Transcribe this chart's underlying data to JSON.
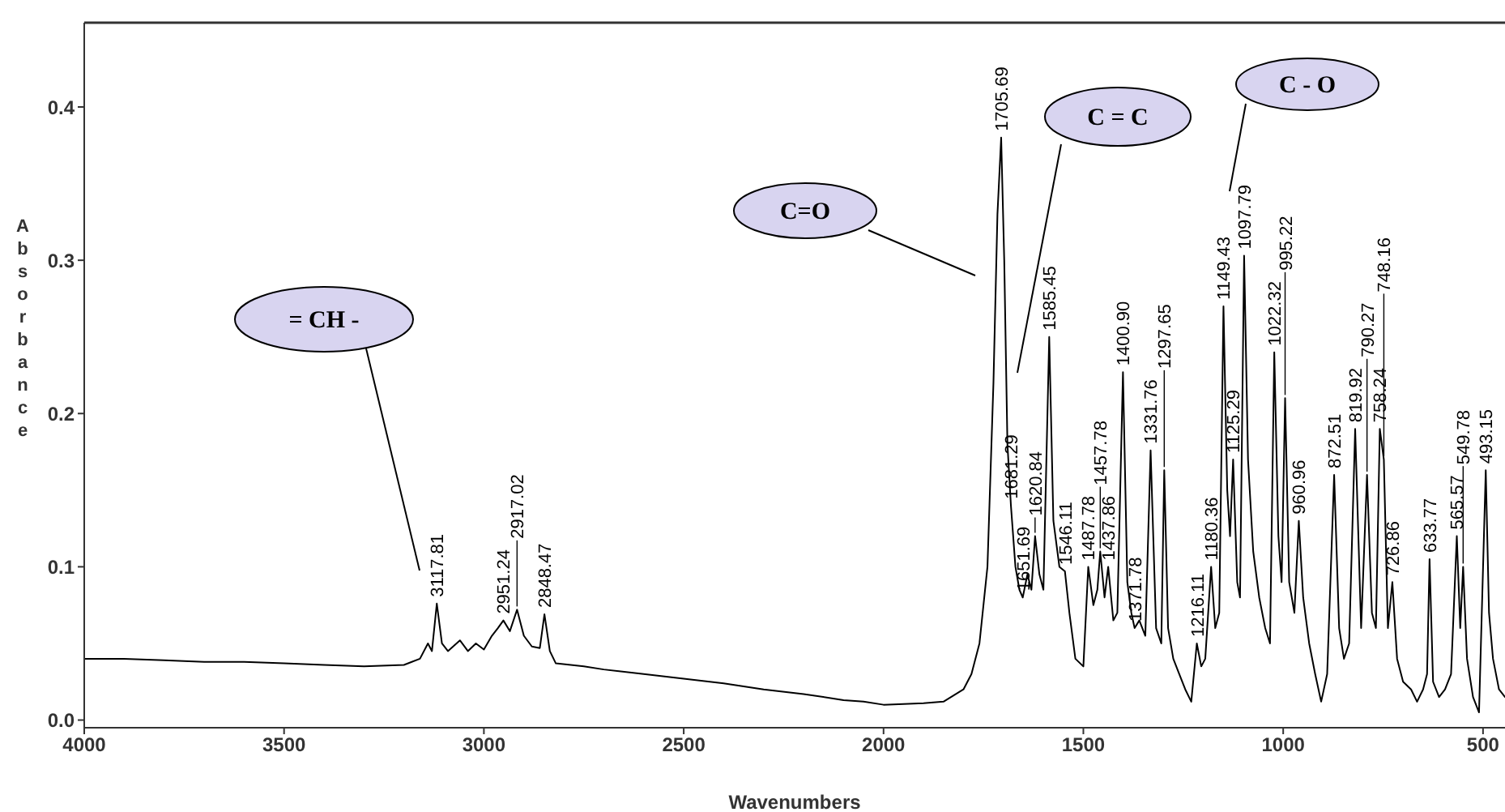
{
  "chart_data": {
    "type": "line",
    "xlabel": "Wavenumbers",
    "ylabel": "Absorbance",
    "xlim": [
      4000,
      445
    ],
    "ylim": [
      -0.005,
      0.455
    ],
    "xticks": [
      4000,
      3500,
      3000,
      2500,
      2000,
      1500,
      1000,
      500
    ],
    "yticks": [
      {
        "value": 0,
        "label": "0.0"
      },
      0.1,
      0.2,
      0.3,
      0.4
    ],
    "grid": false,
    "marker": "none",
    "line_style": "solid",
    "series": [
      {
        "color": "#000000",
        "x": [
          4000,
          3900,
          3800,
          3700,
          3600,
          3500,
          3400,
          3300,
          3200,
          3160,
          3140,
          3130,
          3117.81,
          3105,
          3090,
          3060,
          3040,
          3020,
          3000,
          2980,
          2965,
          2951.24,
          2935,
          2917.02,
          2900,
          2880,
          2860,
          2848.47,
          2835,
          2820,
          2750,
          2700,
          2600,
          2500,
          2400,
          2300,
          2200,
          2100,
          2050,
          2000,
          1900,
          1850,
          1800,
          1780,
          1760,
          1740,
          1725,
          1715,
          1705.69,
          1698,
          1690,
          1681.29,
          1670,
          1660,
          1651.69,
          1640,
          1630,
          1620.84,
          1610,
          1600,
          1585.45,
          1575,
          1560,
          1546.11,
          1535,
          1520,
          1500,
          1487.78,
          1475,
          1465,
          1457.78,
          1447,
          1437.86,
          1425,
          1415,
          1400.9,
          1390,
          1380,
          1371.78,
          1360,
          1345,
          1331.76,
          1318,
          1305,
          1297.65,
          1288,
          1275,
          1260,
          1245,
          1230,
          1216.11,
          1205,
          1195,
          1180.36,
          1170,
          1160,
          1149.43,
          1140,
          1133,
          1125.29,
          1115,
          1108,
          1097.79,
          1088,
          1075,
          1060,
          1045,
          1033,
          1022.32,
          1012,
          1004,
          995.22,
          985,
          972,
          960.96,
          950,
          935,
          920,
          905,
          890,
          872.51,
          860,
          848,
          835,
          819.92,
          805,
          790.27,
          778,
          768,
          758.24,
          748.16,
          738,
          726.86,
          715,
          700,
          680,
          665,
          650,
          640,
          633.77,
          625,
          610,
          595,
          580,
          565.57,
          557,
          549.78,
          540,
          525,
          510,
          493.15,
          485,
          475,
          460,
          445
        ],
        "values": [
          0.04,
          0.04,
          0.039,
          0.038,
          0.038,
          0.037,
          0.036,
          0.035,
          0.036,
          0.04,
          0.05,
          0.045,
          0.076,
          0.05,
          0.045,
          0.052,
          0.045,
          0.05,
          0.046,
          0.055,
          0.06,
          0.065,
          0.058,
          0.072,
          0.055,
          0.048,
          0.047,
          0.069,
          0.045,
          0.037,
          0.035,
          0.033,
          0.03,
          0.027,
          0.024,
          0.02,
          0.017,
          0.013,
          0.012,
          0.01,
          0.011,
          0.012,
          0.02,
          0.03,
          0.05,
          0.1,
          0.22,
          0.33,
          0.38,
          0.3,
          0.18,
          0.14,
          0.1,
          0.085,
          0.08,
          0.095,
          0.085,
          0.12,
          0.095,
          0.085,
          0.25,
          0.13,
          0.1,
          0.097,
          0.07,
          0.04,
          0.035,
          0.1,
          0.075,
          0.085,
          0.11,
          0.08,
          0.1,
          0.065,
          0.07,
          0.227,
          0.09,
          0.07,
          0.06,
          0.065,
          0.055,
          0.176,
          0.06,
          0.05,
          0.163,
          0.06,
          0.04,
          0.03,
          0.02,
          0.012,
          0.05,
          0.035,
          0.04,
          0.1,
          0.06,
          0.07,
          0.27,
          0.15,
          0.12,
          0.17,
          0.09,
          0.08,
          0.303,
          0.17,
          0.11,
          0.08,
          0.06,
          0.05,
          0.24,
          0.12,
          0.09,
          0.21,
          0.09,
          0.07,
          0.13,
          0.08,
          0.05,
          0.03,
          0.012,
          0.03,
          0.16,
          0.06,
          0.04,
          0.05,
          0.19,
          0.06,
          0.16,
          0.07,
          0.06,
          0.19,
          0.17,
          0.06,
          0.09,
          0.04,
          0.025,
          0.02,
          0.012,
          0.02,
          0.03,
          0.105,
          0.025,
          0.015,
          0.02,
          0.03,
          0.12,
          0.06,
          0.1,
          0.04,
          0.015,
          0.005,
          0.163,
          0.07,
          0.04,
          0.02,
          0.015
        ]
      }
    ],
    "annotations": [
      "= CH -",
      "C=O",
      "C = C",
      "C - O",
      {
        "text": "3117.81",
        "x": 3117.81,
        "y": 0.076
      },
      {
        "text": "2951.24",
        "x": 2951.24,
        "y": 0.065
      },
      {
        "text": "2917.02",
        "x": 2917.02,
        "y": 0.072
      },
      {
        "text": "2848.47",
        "x": 2848.47,
        "y": 0.069
      },
      {
        "text": "1705.69",
        "x": 1705.69,
        "y": 0.38
      },
      {
        "text": "1681.29",
        "x": 1681.29,
        "y": 0.14
      },
      {
        "text": "1651.69",
        "x": 1651.69,
        "y": 0.08
      },
      {
        "text": "1620.84",
        "x": 1620.84,
        "y": 0.12
      },
      {
        "text": "1585.45",
        "x": 1585.45,
        "y": 0.25
      },
      {
        "text": "1546.11",
        "x": 1546.11,
        "y": 0.097
      },
      {
        "text": "1487.78",
        "x": 1487.78,
        "y": 0.1
      },
      {
        "text": "1457.78",
        "x": 1457.78,
        "y": 0.11
      },
      {
        "text": "1437.86",
        "x": 1437.86,
        "y": 0.1
      },
      {
        "text": "1400.90",
        "x": 1400.9,
        "y": 0.227
      },
      {
        "text": "1371.78",
        "x": 1371.78,
        "y": 0.06
      },
      {
        "text": "1331.76",
        "x": 1331.76,
        "y": 0.176
      },
      {
        "text": "1297.65",
        "x": 1297.65,
        "y": 0.163
      },
      {
        "text": "1216.11",
        "x": 1216.11,
        "y": 0.05
      },
      {
        "text": "1180.36",
        "x": 1180.36,
        "y": 0.1
      },
      {
        "text": "1149.43",
        "x": 1149.43,
        "y": 0.27
      },
      {
        "text": "1125.29",
        "x": 1125.29,
        "y": 0.17
      },
      {
        "text": "1097.79",
        "x": 1097.79,
        "y": 0.303
      },
      {
        "text": "1022.32",
        "x": 1022.32,
        "y": 0.24
      },
      {
        "text": "995.22",
        "x": 995.22,
        "y": 0.21
      },
      {
        "text": "960.96",
        "x": 960.96,
        "y": 0.13
      },
      {
        "text": "872.51",
        "x": 872.51,
        "y": 0.16
      },
      {
        "text": "819.92",
        "x": 819.92,
        "y": 0.19
      },
      {
        "text": "790.27",
        "x": 790.27,
        "y": 0.16
      },
      {
        "text": "758.24",
        "x": 758.24,
        "y": 0.19
      },
      {
        "text": "748.16",
        "x": 748.16,
        "y": 0.17
      },
      {
        "text": "726.86",
        "x": 726.86,
        "y": 0.09
      },
      {
        "text": "633.77",
        "x": 633.77,
        "y": 0.105
      },
      {
        "text": "565.57",
        "x": 565.57,
        "y": 0.12
      },
      {
        "text": "549.78",
        "x": 549.78,
        "y": 0.1
      },
      {
        "text": "493.15",
        "x": 493.15,
        "y": 0.163
      }
    ]
  }
}
